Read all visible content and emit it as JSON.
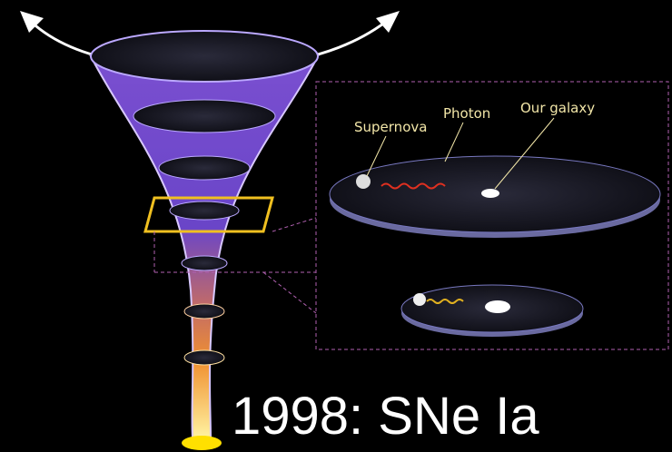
{
  "labels": {
    "supernova": "Supernova",
    "photon": "Photon",
    "galaxy": "Our galaxy"
  },
  "caption": "1998: SNe Ia"
}
